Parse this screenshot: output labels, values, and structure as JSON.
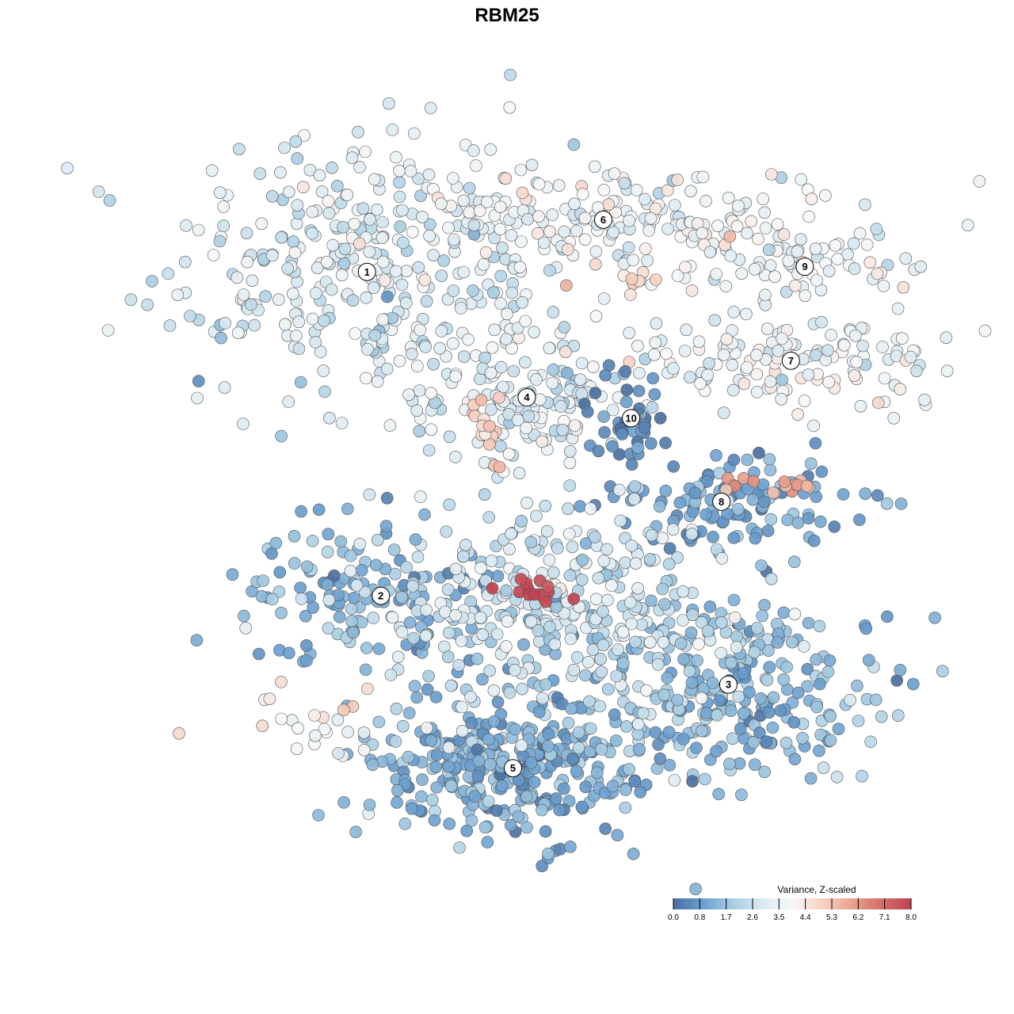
{
  "chart_data": {
    "type": "scatter",
    "title": "RBM25",
    "colorbar": {
      "title": "Variance, Z-scaled",
      "ticks": [
        "0.0",
        "0.8",
        "1.7",
        "2.6",
        "3.5",
        "4.4",
        "5.3",
        "6.2",
        "7.1",
        "8.0"
      ],
      "range": [
        0,
        8
      ],
      "colors": [
        "#4a6fa0",
        "#6a9fcf",
        "#a7cde2",
        "#dbeaf2",
        "#f7f7f7",
        "#f6d2c4",
        "#eaa48f",
        "#d26f6b",
        "#c0414f"
      ],
      "position": "bottom-right"
    },
    "clusters": [
      {
        "label": "1",
        "center": [
          -2.6,
          5.0
        ],
        "spread": [
          1.5,
          1.35
        ],
        "level": 3.0,
        "count": 340
      },
      {
        "label": "6",
        "center": [
          0.8,
          6.0
        ],
        "spread": [
          1.8,
          0.55
        ],
        "level": 3.5,
        "count": 200
      },
      {
        "label": "9",
        "center": [
          3.7,
          5.1
        ],
        "spread": [
          0.9,
          0.35
        ],
        "level": 3.7,
        "count": 65
      },
      {
        "label": "7",
        "center": [
          3.5,
          3.3
        ],
        "spread": [
          1.35,
          0.45
        ],
        "level": 3.6,
        "count": 140
      },
      {
        "label": "4",
        "center": [
          -0.3,
          2.6
        ],
        "spread": [
          0.75,
          0.8
        ],
        "level": 3.2,
        "count": 150
      },
      {
        "label": "10",
        "center": [
          1.2,
          2.2
        ],
        "spread": [
          0.3,
          0.45
        ],
        "level": 0.4,
        "count": 45
      },
      {
        "label": "8",
        "center": [
          2.5,
          0.6
        ],
        "spread": [
          0.9,
          0.45
        ],
        "level": 1.1,
        "count": 120
      },
      {
        "label": "2",
        "center": [
          -2.4,
          -1.2
        ],
        "spread": [
          1.0,
          0.65
        ],
        "level": 1.4,
        "count": 150
      },
      {
        "label": "3",
        "center": [
          2.6,
          -2.9
        ],
        "spread": [
          1.25,
          0.9
        ],
        "level": 1.6,
        "count": 280
      },
      {
        "label": "5",
        "center": [
          -0.5,
          -4.5
        ],
        "spread": [
          1.1,
          0.75
        ],
        "level": 1.3,
        "count": 330
      },
      {
        "label": "",
        "center": [
          0.1,
          -1.4
        ],
        "spread": [
          1.3,
          0.9
        ],
        "level": 2.7,
        "count": 320
      },
      {
        "label": "",
        "center": [
          -3.3,
          -3.6
        ],
        "spread": [
          0.6,
          0.25
        ],
        "level": 4.1,
        "count": 25
      }
    ],
    "highlights": [
      {
        "center": [
          -0.1,
          -1.1
        ],
        "spread": [
          0.25,
          0.12
        ],
        "level": 7.8,
        "count": 14
      },
      {
        "center": [
          3.2,
          0.9
        ],
        "spread": [
          0.45,
          0.08
        ],
        "level": 6.0,
        "count": 14
      },
      {
        "center": [
          -0.9,
          2.1
        ],
        "spread": [
          0.2,
          0.35
        ],
        "level": 5.0,
        "count": 16
      },
      {
        "center": [
          1.5,
          4.8
        ],
        "spread": [
          0.35,
          0.2
        ],
        "level": 4.8,
        "count": 10
      }
    ],
    "x_range": [
      -5.6,
      5.0
    ],
    "y_range": [
      -6.4,
      7.4
    ]
  }
}
